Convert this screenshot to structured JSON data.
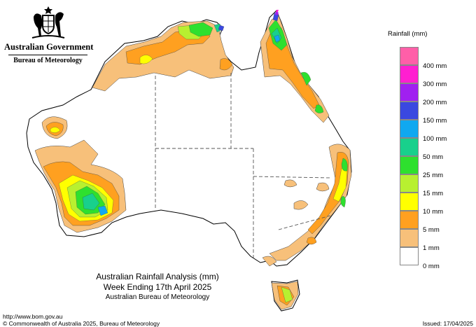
{
  "header": {
    "government": "Australian Government",
    "bureau": "Bureau of Meteorology"
  },
  "map": {
    "title": "Australian Rainfall Analysis (mm)",
    "period": "Week Ending 17th April 2025",
    "agency": "Australian Bureau of Meteorology"
  },
  "legend": {
    "title": "Rainfall (mm)",
    "bins": [
      {
        "label": "400 mm",
        "color": "#ff5fa8"
      },
      {
        "label": "300 mm",
        "color": "#ff1fd0"
      },
      {
        "label": "200 mm",
        "color": "#a020f0"
      },
      {
        "label": "150 mm",
        "color": "#3a48e0"
      },
      {
        "label": "100 mm",
        "color": "#10a8f0"
      },
      {
        "label": "50 mm",
        "color": "#18d08c"
      },
      {
        "label": "25 mm",
        "color": "#2ee02e"
      },
      {
        "label": "15 mm",
        "color": "#b8f030"
      },
      {
        "label": "10 mm",
        "color": "#ffff00"
      },
      {
        "label": "5 mm",
        "color": "#ffa020"
      },
      {
        "label": "1 mm",
        "color": "#f7c07a"
      },
      {
        "label": "0 mm",
        "color": "#ffffff"
      }
    ]
  },
  "footer": {
    "url": "http://www.bom.gov.au",
    "copyright": "© Commonwealth of Australia 2025, Bureau of Meteorology",
    "issued": "Issued: 17/04/2025"
  }
}
